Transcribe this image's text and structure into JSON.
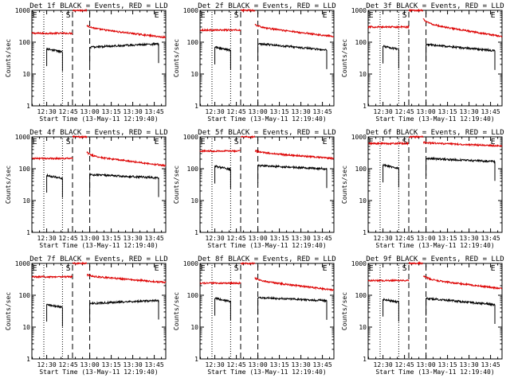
{
  "colors": {
    "events": "#000000",
    "lld": "#dd0000",
    "axes": "#000000",
    "background": "#ffffff"
  },
  "chart_data": [
    {
      "type": "line",
      "title": "Det 1f BLACK = Events, RED = LLD",
      "xlabel": "Start Time (13-May-11 12:19:40)",
      "ylabel": "Counts/sec",
      "yscale": "log",
      "ylim": [
        1,
        1000
      ],
      "yticks": [
        "1",
        "10",
        "100",
        "1000"
      ],
      "xlim": [
        "12:19:40",
        "13:53:00"
      ],
      "xticks": [
        "12:30",
        "12:45",
        "13:00",
        "13:15",
        "13:30",
        "13:45"
      ],
      "markers": [
        {
          "label": "E",
          "time": "12:20:00",
          "align": "start"
        },
        {
          "label": "S",
          "time": "12:45:00",
          "align": "middle"
        },
        {
          "label": "E",
          "time": "13:45:00",
          "align": "start"
        }
      ],
      "events": {
        "segments": [
          {
            "start": "12:30",
            "end": "12:41",
            "level": 62,
            "trend": -0.1
          },
          {
            "start": "13:00",
            "end": "13:48",
            "level": 70,
            "trend": 0.1
          }
        ]
      },
      "lld": {
        "segments": [
          {
            "start": "12:19:40",
            "end": "12:48",
            "level": 190
          },
          {
            "start": "12:48",
            "end": "12:58",
            "level": 1000
          },
          {
            "start": "12:58",
            "end": "13:53",
            "level": 280,
            "trend": -0.3,
            "dip": 0.2
          }
        ]
      },
      "gaps": {
        "dotted": [
          "12:28",
          "12:41"
        ],
        "dashed": [
          "12:48",
          "13:00"
        ]
      }
    },
    {
      "type": "line",
      "title": "Det 2f BLACK = Events, RED = LLD",
      "xlabel": "Start Time (13-May-11 12:19:40)",
      "ylabel": "Counts/sec",
      "yscale": "log",
      "ylim": [
        1,
        1000
      ],
      "yticks": [
        "1",
        "10",
        "100",
        "1000"
      ],
      "xlim": [
        "12:19:40",
        "13:53:00"
      ],
      "xticks": [
        "12:30",
        "12:45",
        "13:00",
        "13:15",
        "13:30",
        "13:45"
      ],
      "markers": [
        {
          "label": "E",
          "time": "12:20:00",
          "align": "start"
        },
        {
          "label": "S",
          "time": "12:45:00",
          "align": "middle"
        },
        {
          "label": "E",
          "time": "13:45:00",
          "align": "start"
        }
      ],
      "events": {
        "segments": [
          {
            "start": "12:30",
            "end": "12:41",
            "level": 70,
            "trend": -0.1
          },
          {
            "start": "13:00",
            "end": "13:48",
            "level": 90,
            "trend": -0.2
          }
        ]
      },
      "lld": {
        "segments": [
          {
            "start": "12:19:40",
            "end": "12:48",
            "level": 240
          },
          {
            "start": "12:48",
            "end": "12:58",
            "level": 1000
          },
          {
            "start": "12:58",
            "end": "13:53",
            "level": 300,
            "trend": -0.3,
            "dip": 0.2
          }
        ]
      },
      "gaps": {
        "dotted": [
          "12:28",
          "12:41"
        ],
        "dashed": [
          "12:48",
          "13:00"
        ]
      }
    },
    {
      "type": "line",
      "title": "Det 3f BLACK = Events, RED = LLD",
      "xlabel": "Start Time (13-May-11 12:19:40)",
      "ylabel": "Counts/sec",
      "yscale": "log",
      "ylim": [
        1,
        1000
      ],
      "yticks": [
        "1",
        "10",
        "100",
        "1000"
      ],
      "xlim": [
        "12:19:40",
        "13:53:00"
      ],
      "xticks": [
        "12:30",
        "12:45",
        "13:00",
        "13:15",
        "13:30",
        "13:45"
      ],
      "markers": [
        {
          "label": "E",
          "time": "12:20:00",
          "align": "start"
        },
        {
          "label": "S",
          "time": "12:45:00",
          "align": "middle"
        },
        {
          "label": "E",
          "time": "13:45:00",
          "align": "start"
        }
      ],
      "events": {
        "segments": [
          {
            "start": "12:30",
            "end": "12:41",
            "level": 75,
            "trend": -0.1
          },
          {
            "start": "13:00",
            "end": "13:48",
            "level": 85,
            "trend": -0.2
          }
        ]
      },
      "lld": {
        "segments": [
          {
            "start": "12:19:40",
            "end": "12:48",
            "level": 300
          },
          {
            "start": "12:48",
            "end": "12:58",
            "level": 1000
          },
          {
            "start": "12:58",
            "end": "13:53",
            "level": 380,
            "trend": -0.4,
            "dip": 0.4
          }
        ]
      },
      "gaps": {
        "dotted": [
          "12:28",
          "12:41"
        ],
        "dashed": [
          "12:48",
          "13:00"
        ]
      }
    },
    {
      "type": "line",
      "title": "Det 4f BLACK = Events, RED = LLD",
      "xlabel": "Start Time (13-May-11 12:19:40)",
      "ylabel": "Counts/sec",
      "yscale": "log",
      "ylim": [
        1,
        1000
      ],
      "yticks": [
        "1",
        "10",
        "100",
        "1000"
      ],
      "xlim": [
        "12:19:40",
        "13:53:00"
      ],
      "xticks": [
        "12:30",
        "12:45",
        "13:00",
        "13:15",
        "13:30",
        "13:45"
      ],
      "markers": [
        {
          "label": "E",
          "time": "12:20:00",
          "align": "start"
        },
        {
          "label": "S",
          "time": "12:45:00",
          "align": "middle"
        },
        {
          "label": "E",
          "time": "13:45:00",
          "align": "start"
        }
      ],
      "events": {
        "segments": [
          {
            "start": "12:30",
            "end": "12:41",
            "level": 62,
            "trend": -0.1
          },
          {
            "start": "13:00",
            "end": "13:48",
            "level": 65,
            "trend": -0.1
          }
        ]
      },
      "lld": {
        "segments": [
          {
            "start": "12:19:40",
            "end": "12:48",
            "level": 210
          },
          {
            "start": "12:48",
            "end": "12:58",
            "level": 1000
          },
          {
            "start": "12:58",
            "end": "13:53",
            "level": 250,
            "trend": -0.3,
            "dip": 0.3
          }
        ]
      },
      "gaps": {
        "dotted": [
          "12:28",
          "12:41"
        ],
        "dashed": [
          "12:48",
          "13:00"
        ]
      }
    },
    {
      "type": "line",
      "title": "Det 5f BLACK = Events, RED = LLD",
      "xlabel": "Start Time (13-May-11 12:19:40)",
      "ylabel": "Counts/sec",
      "yscale": "log",
      "ylim": [
        1,
        1000
      ],
      "yticks": [
        "1",
        "10",
        "100",
        "1000"
      ],
      "xlim": [
        "12:19:40",
        "13:53:00"
      ],
      "xticks": [
        "12:30",
        "12:45",
        "13:00",
        "13:15",
        "13:30",
        "13:45"
      ],
      "markers": [
        {
          "label": "E",
          "time": "12:20:00",
          "align": "start"
        },
        {
          "label": "S",
          "time": "12:45:00",
          "align": "middle"
        },
        {
          "label": "E",
          "time": "13:45:00",
          "align": "start"
        }
      ],
      "events": {
        "segments": [
          {
            "start": "12:30",
            "end": "12:41",
            "level": 120,
            "trend": -0.1
          },
          {
            "start": "13:00",
            "end": "13:48",
            "level": 125,
            "trend": -0.1
          }
        ]
      },
      "lld": {
        "segments": [
          {
            "start": "12:19:40",
            "end": "12:48",
            "level": 360
          },
          {
            "start": "12:48",
            "end": "12:58",
            "level": 1000
          },
          {
            "start": "12:58",
            "end": "13:53",
            "level": 330,
            "trend": -0.2,
            "dip": 0.1
          }
        ]
      },
      "gaps": {
        "dotted": [
          "12:28",
          "12:41"
        ],
        "dashed": [
          "12:48",
          "13:00"
        ]
      }
    },
    {
      "type": "line",
      "title": "Det 6f BLACK = Events, RED = LLD",
      "xlabel": "Start Time (13-May-11 12:19:40)",
      "ylabel": "Counts/sec",
      "yscale": "log",
      "ylim": [
        1,
        1000
      ],
      "yticks": [
        "1",
        "10",
        "100",
        "1000"
      ],
      "xlim": [
        "12:19:40",
        "13:53:00"
      ],
      "xticks": [
        "12:30",
        "12:45",
        "13:00",
        "13:15",
        "13:30",
        "13:45"
      ],
      "markers": [
        {
          "label": "E",
          "time": "12:20:00",
          "align": "start"
        },
        {
          "label": "S",
          "time": "12:45:00",
          "align": "middle"
        },
        {
          "label": "E",
          "time": "13:45:00",
          "align": "start"
        }
      ],
      "events": {
        "segments": [
          {
            "start": "12:30",
            "end": "12:41",
            "level": 130,
            "trend": -0.1
          },
          {
            "start": "13:00",
            "end": "13:48",
            "level": 210,
            "trend": -0.1
          }
        ]
      },
      "lld": {
        "segments": [
          {
            "start": "12:19:40",
            "end": "12:48",
            "level": 620
          },
          {
            "start": "12:48",
            "end": "12:58",
            "level": 1000
          },
          {
            "start": "12:58",
            "end": "13:53",
            "level": 650,
            "trend": -0.1,
            "dip": 0.05
          }
        ]
      },
      "gaps": {
        "dotted": [
          "12:28",
          "12:41"
        ],
        "dashed": [
          "12:48",
          "13:00"
        ]
      }
    },
    {
      "type": "line",
      "title": "Det 7f BLACK = Events, RED = LLD",
      "xlabel": "Start Time (13-May-11 12:19:40)",
      "ylabel": "Counts/sec",
      "yscale": "log",
      "ylim": [
        1,
        1000
      ],
      "yticks": [
        "1",
        "10",
        "100",
        "1000"
      ],
      "xlim": [
        "12:19:40",
        "13:53:00"
      ],
      "xticks": [
        "12:30",
        "12:45",
        "13:00",
        "13:15",
        "13:30",
        "13:45"
      ],
      "markers": [
        {
          "label": "E",
          "time": "12:20:00",
          "align": "start"
        },
        {
          "label": "S",
          "time": "12:45:00",
          "align": "middle"
        },
        {
          "label": "E",
          "time": "13:45:00",
          "align": "start"
        }
      ],
      "events": {
        "segments": [
          {
            "start": "12:30",
            "end": "12:41",
            "level": 52,
            "trend": -0.1
          },
          {
            "start": "13:00",
            "end": "13:48",
            "level": 55,
            "trend": 0.1
          }
        ]
      },
      "lld": {
        "segments": [
          {
            "start": "12:19:40",
            "end": "12:48",
            "level": 380
          },
          {
            "start": "12:48",
            "end": "12:58",
            "level": 1000
          },
          {
            "start": "12:58",
            "end": "13:53",
            "level": 400,
            "trend": -0.2,
            "dip": 0.1
          }
        ]
      },
      "gaps": {
        "dotted": [
          "12:28",
          "12:41"
        ],
        "dashed": [
          "12:48",
          "13:00"
        ]
      }
    },
    {
      "type": "line",
      "title": "Det 8f BLACK = Events, RED = LLD",
      "xlabel": "Start Time (13-May-11 12:19:40)",
      "ylabel": "Counts/sec",
      "yscale": "log",
      "ylim": [
        1,
        1000
      ],
      "yticks": [
        "1",
        "10",
        "100",
        "1000"
      ],
      "xlim": [
        "12:19:40",
        "13:53:00"
      ],
      "xticks": [
        "12:30",
        "12:45",
        "13:00",
        "13:15",
        "13:30",
        "13:45"
      ],
      "markers": [
        {
          "label": "E",
          "time": "12:20:00",
          "align": "start"
        },
        {
          "label": "S",
          "time": "12:45:00",
          "align": "middle"
        },
        {
          "label": "E",
          "time": "13:45:00",
          "align": "start"
        }
      ],
      "events": {
        "segments": [
          {
            "start": "12:30",
            "end": "12:41",
            "level": 80,
            "trend": -0.1
          },
          {
            "start": "13:00",
            "end": "13:48",
            "level": 85,
            "trend": -0.1
          }
        ]
      },
      "lld": {
        "segments": [
          {
            "start": "12:19:40",
            "end": "12:48",
            "level": 240
          },
          {
            "start": "12:48",
            "end": "12:58",
            "level": 1000
          },
          {
            "start": "12:58",
            "end": "13:53",
            "level": 290,
            "trend": -0.3,
            "dip": 0.2
          }
        ]
      },
      "gaps": {
        "dotted": [
          "12:28",
          "12:41"
        ],
        "dashed": [
          "12:48",
          "13:00"
        ]
      }
    },
    {
      "type": "line",
      "title": "Det 9f BLACK = Events, RED = LLD",
      "xlabel": "Start Time (13-May-11 12:19:40)",
      "ylabel": "Counts/sec",
      "yscale": "log",
      "ylim": [
        1,
        1000
      ],
      "yticks": [
        "1",
        "10",
        "100",
        "1000"
      ],
      "xlim": [
        "12:19:40",
        "13:53:00"
      ],
      "xticks": [
        "12:30",
        "12:45",
        "13:00",
        "13:15",
        "13:30",
        "13:45"
      ],
      "markers": [
        {
          "label": "E",
          "time": "12:20:00",
          "align": "start"
        },
        {
          "label": "S",
          "time": "12:45:00",
          "align": "middle"
        },
        {
          "label": "E",
          "time": "13:45:00",
          "align": "start"
        }
      ],
      "events": {
        "segments": [
          {
            "start": "12:30",
            "end": "12:41",
            "level": 75,
            "trend": -0.1
          },
          {
            "start": "13:00",
            "end": "13:48",
            "level": 80,
            "trend": -0.2
          }
        ]
      },
      "lld": {
        "segments": [
          {
            "start": "12:19:40",
            "end": "12:48",
            "level": 290
          },
          {
            "start": "12:48",
            "end": "12:58",
            "level": 1000
          },
          {
            "start": "12:58",
            "end": "13:53",
            "level": 320,
            "trend": -0.3,
            "dip": 0.3
          }
        ]
      },
      "gaps": {
        "dotted": [
          "12:28",
          "12:41"
        ],
        "dashed": [
          "12:48",
          "13:00"
        ]
      }
    }
  ]
}
